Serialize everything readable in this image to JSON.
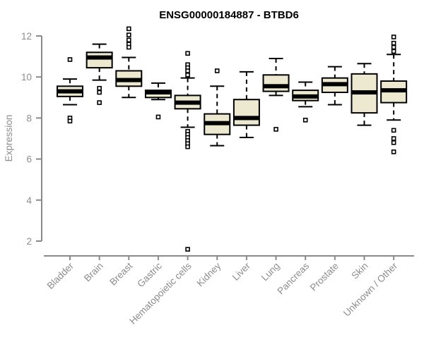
{
  "chart_data": {
    "type": "boxplot",
    "title": "ENSG00000184887 - BTBD6",
    "ylabel": "Expression",
    "ylim": [
      2,
      12
    ],
    "yticks": [
      2,
      4,
      6,
      8,
      10,
      12
    ],
    "grid": false,
    "legend": "none",
    "categories": [
      "Bladder",
      "Brain",
      "Breast",
      "Gastric",
      "Hematopoietic cells",
      "Kidney",
      "Liver",
      "Lung",
      "Pancreas",
      "Prostate",
      "Skin",
      "Unknown / Other"
    ],
    "boxes": [
      {
        "low": 8.65,
        "q1": 9.05,
        "median": 9.3,
        "q3": 9.55,
        "high": 9.9,
        "outliers": [
          10.85,
          8.0,
          7.85
        ]
      },
      {
        "low": 9.85,
        "q1": 10.45,
        "median": 10.95,
        "q3": 11.2,
        "high": 11.6,
        "outliers": [
          9.45,
          9.25,
          8.75
        ]
      },
      {
        "low": 9.0,
        "q1": 9.55,
        "median": 9.85,
        "q3": 10.3,
        "high": 10.95,
        "outliers": [
          12.35,
          12.05,
          11.8,
          11.6,
          11.45
        ]
      },
      {
        "low": 8.9,
        "q1": 9.0,
        "median": 9.25,
        "q3": 9.35,
        "high": 9.7,
        "outliers": [
          8.05
        ]
      },
      {
        "low": 7.55,
        "q1": 8.45,
        "median": 8.75,
        "q3": 9.1,
        "high": 9.95,
        "outliers": [
          11.15,
          10.6,
          10.45,
          10.3,
          10.1,
          7.35,
          7.2,
          7.05,
          6.9,
          6.75,
          6.6,
          1.6
        ]
      },
      {
        "low": 6.65,
        "q1": 7.2,
        "median": 7.75,
        "q3": 8.2,
        "high": 9.55,
        "outliers": [
          10.3
        ]
      },
      {
        "low": 7.05,
        "q1": 7.65,
        "median": 8.0,
        "q3": 8.9,
        "high": 10.25,
        "outliers": []
      },
      {
        "low": 9.1,
        "q1": 9.3,
        "median": 9.55,
        "q3": 10.1,
        "high": 10.9,
        "outliers": [
          7.45
        ]
      },
      {
        "low": 8.55,
        "q1": 8.85,
        "median": 9.05,
        "q3": 9.35,
        "high": 9.75,
        "outliers": [
          7.9
        ]
      },
      {
        "low": 8.65,
        "q1": 9.25,
        "median": 9.65,
        "q3": 9.95,
        "high": 10.5,
        "outliers": []
      },
      {
        "low": 7.65,
        "q1": 8.25,
        "median": 9.25,
        "q3": 10.15,
        "high": 10.65,
        "outliers": []
      },
      {
        "low": 7.9,
        "q1": 8.75,
        "median": 9.35,
        "q3": 9.8,
        "high": 11.1,
        "outliers": [
          11.95,
          11.65,
          11.45,
          11.25,
          7.4,
          7.0,
          6.8,
          6.35
        ]
      }
    ],
    "colors": {
      "box_fill": "#ede8d0",
      "box_stroke": "#000000",
      "median": "#000000",
      "axis": "#8a8a8a",
      "tick_label": "#8c8c8c",
      "title": "#000000",
      "outlier_stroke": "#000000",
      "background": "#ffffff"
    }
  }
}
